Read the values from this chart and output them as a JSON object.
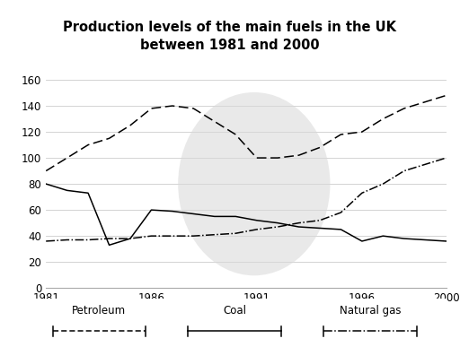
{
  "title": "Production levels of the main fuels in the UK\nbetween 1981 and 2000",
  "years": [
    1981,
    1982,
    1983,
    1984,
    1985,
    1986,
    1987,
    1988,
    1989,
    1990,
    1991,
    1992,
    1993,
    1994,
    1995,
    1996,
    1997,
    1998,
    1999,
    2000
  ],
  "petroleum": [
    80,
    75,
    73,
    33,
    38,
    60,
    59,
    57,
    55,
    55,
    52,
    50,
    47,
    46,
    45,
    36,
    40,
    38,
    37,
    36
  ],
  "coal": [
    90,
    100,
    110,
    115,
    125,
    138,
    140,
    138,
    128,
    118,
    100,
    100,
    102,
    108,
    118,
    120,
    130,
    138,
    143,
    148
  ],
  "natural_gas": [
    36,
    37,
    37,
    38,
    38,
    40,
    40,
    40,
    41,
    42,
    45,
    47,
    50,
    52,
    58,
    73,
    80,
    90,
    95,
    100
  ],
  "ylim": [
    0,
    160
  ],
  "yticks": [
    0,
    20,
    40,
    60,
    80,
    100,
    120,
    140,
    160
  ],
  "xticks": [
    1981,
    1986,
    1991,
    1996,
    2000
  ],
  "bg_color": "#ffffff",
  "line_color": "#000000",
  "legend_labels": [
    "Petroleum",
    "Coal",
    "Natural gas"
  ],
  "ellipse_color": "#d8d8d8",
  "grid_color": "#cccccc"
}
